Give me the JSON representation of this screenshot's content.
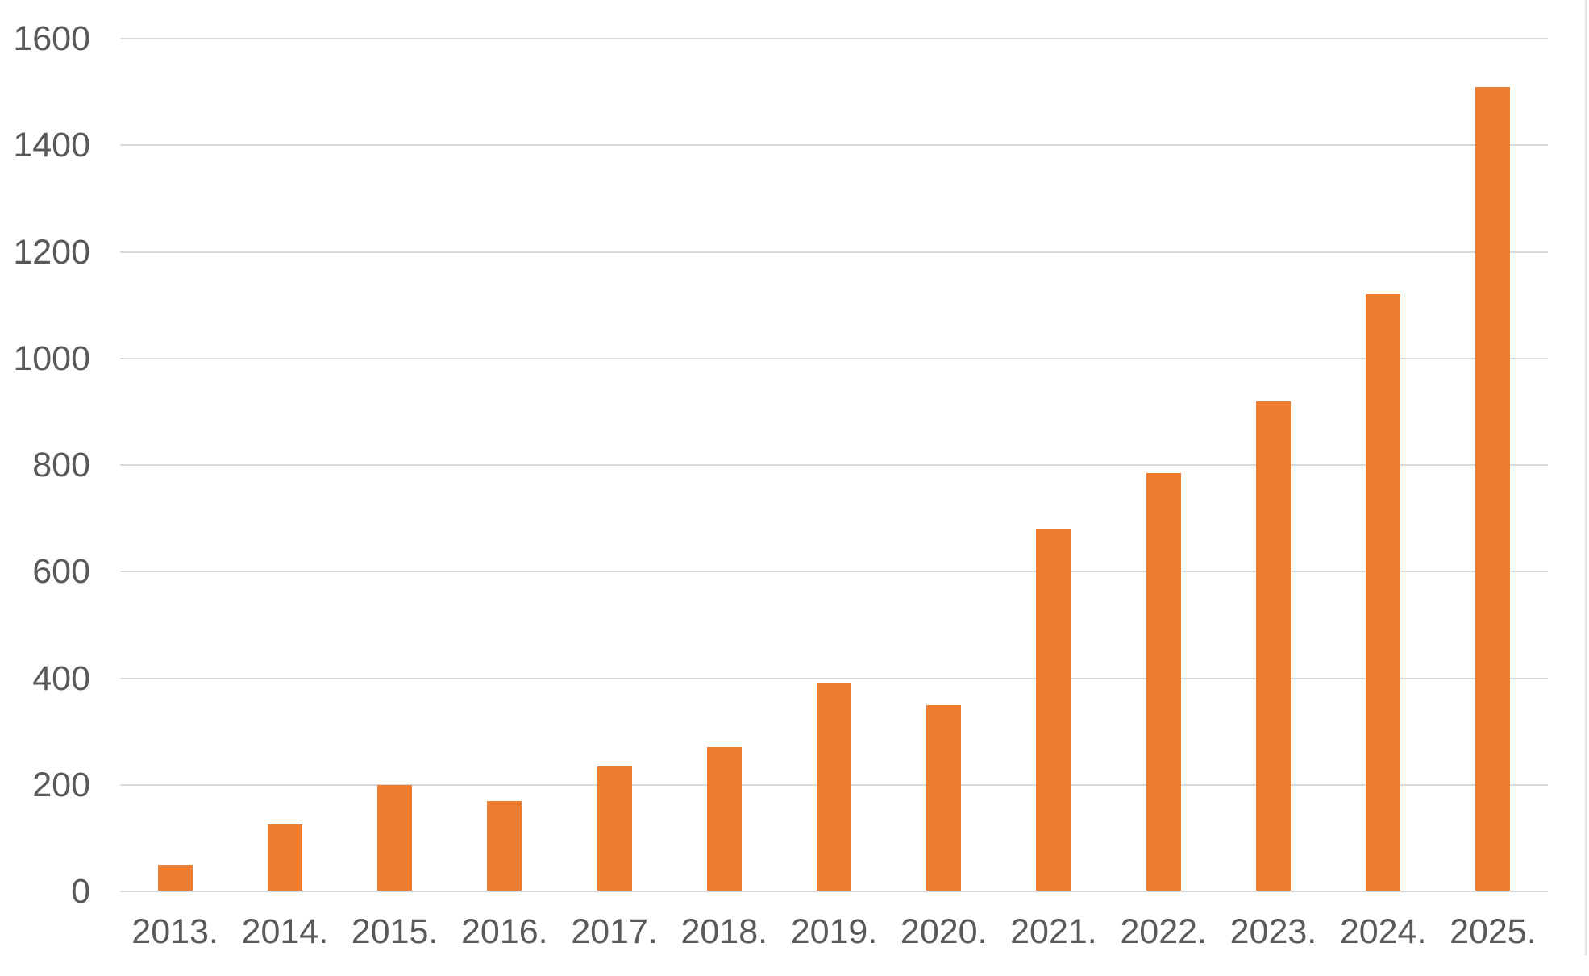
{
  "chart_data": {
    "type": "bar",
    "categories": [
      "2013.",
      "2014.",
      "2015.",
      "2016.",
      "2017.",
      "2018.",
      "2019.",
      "2020.",
      "2021.",
      "2022.",
      "2023.",
      "2024.",
      "2025."
    ],
    "values": [
      50,
      125,
      200,
      170,
      235,
      270,
      390,
      350,
      680,
      785,
      920,
      1120,
      1510
    ],
    "title": "",
    "xlabel": "",
    "ylabel": "",
    "ylim": [
      0,
      1600
    ],
    "yticks": [
      0,
      200,
      400,
      600,
      800,
      1000,
      1200,
      1400,
      1600
    ],
    "ytick_labels": [
      "0",
      "200",
      "400",
      "600",
      "800",
      "1000",
      "1200",
      "1400",
      "1600"
    ],
    "grid": "horizontal",
    "legend": "none",
    "colors": {
      "bar": "#ED7D31",
      "gridline": "#D9D9D9",
      "axis_line": "#D6D6D6",
      "tick_label": "#595959",
      "background": "#FFFFFF",
      "frame_edge": "#E2E2E2"
    }
  }
}
